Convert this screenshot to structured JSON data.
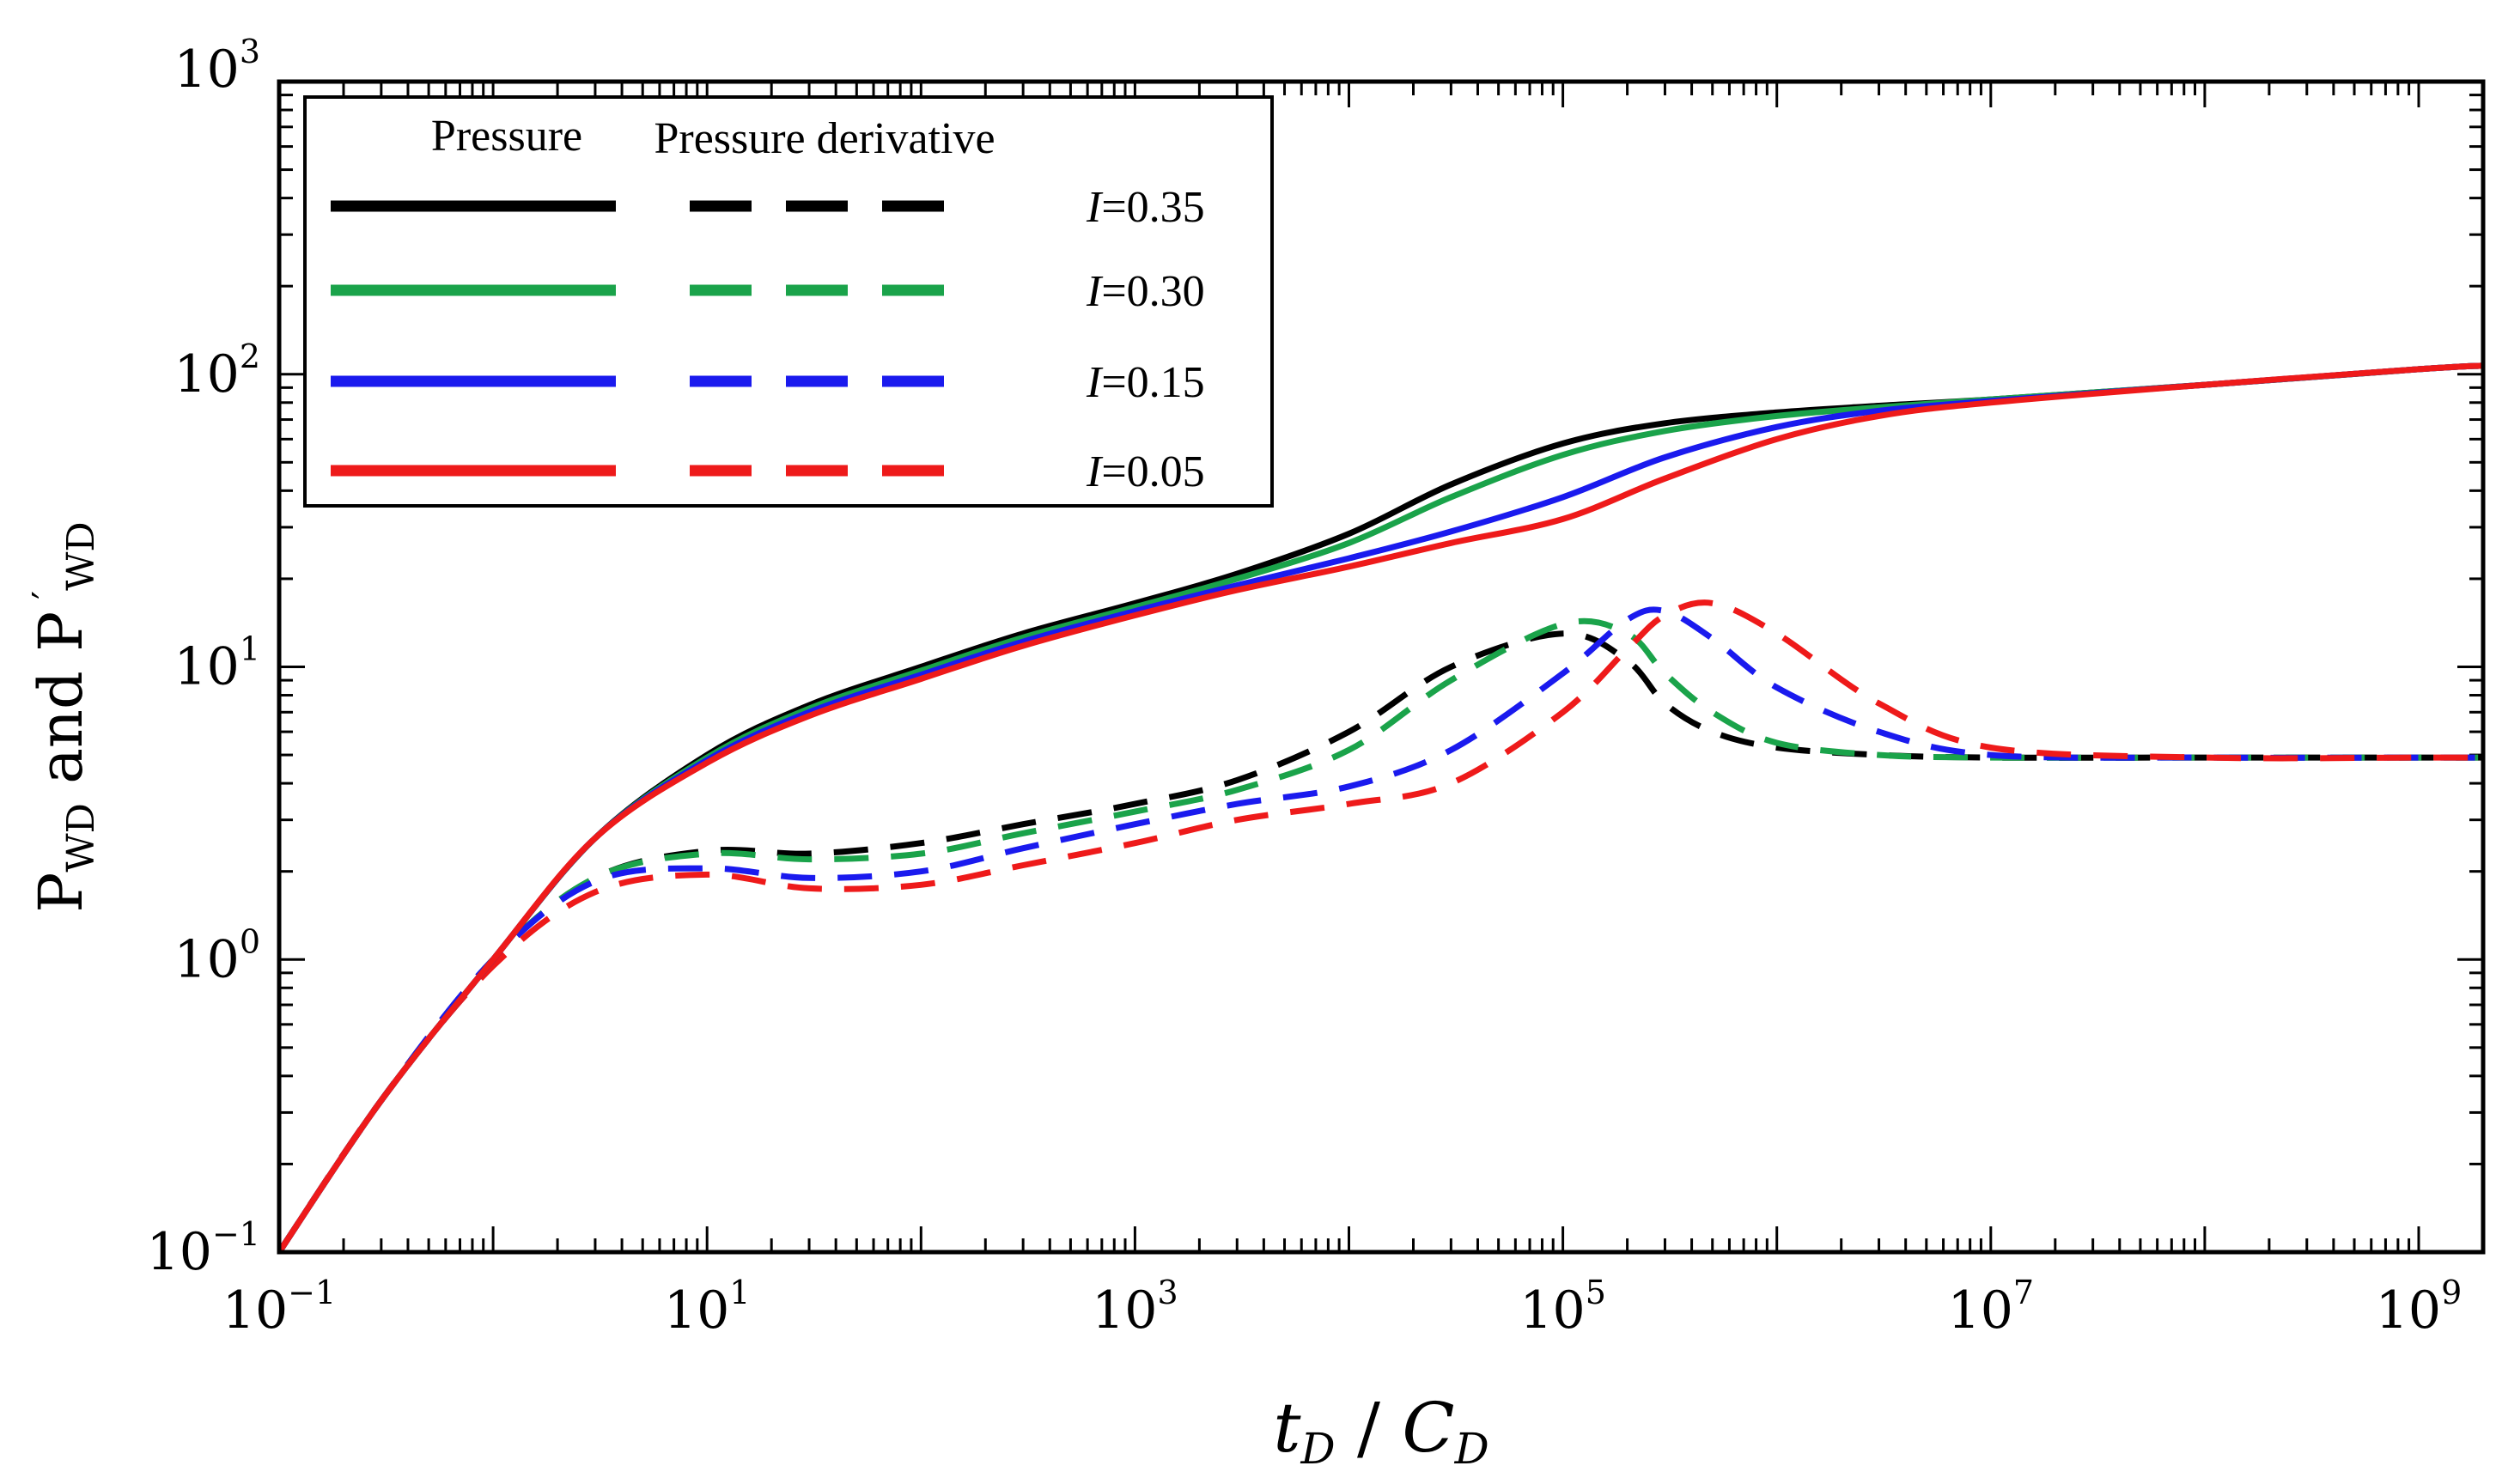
{
  "chart_data": {
    "type": "line",
    "x_scale": "log",
    "y_scale": "log",
    "xlim": [
      0.1,
      2000000000
    ],
    "ylim": [
      0.1,
      1000
    ],
    "x_ticks": [
      {
        "value": 0.1,
        "base": "10",
        "exp": "−1"
      },
      {
        "value": 10,
        "base": "10",
        "exp": "1"
      },
      {
        "value": 1000,
        "base": "10",
        "exp": "3"
      },
      {
        "value": 100000,
        "base": "10",
        "exp": "5"
      },
      {
        "value": 10000000,
        "base": "10",
        "exp": "7"
      },
      {
        "value": 1000000000,
        "base": "10",
        "exp": "9"
      }
    ],
    "y_ticks": [
      {
        "value": 0.1,
        "base": "10",
        "exp": "−1"
      },
      {
        "value": 1,
        "base": "10",
        "exp": "0"
      },
      {
        "value": 10,
        "base": "10",
        "exp": "1"
      },
      {
        "value": 100,
        "base": "10",
        "exp": "2"
      },
      {
        "value": 1000,
        "base": "10",
        "exp": "3"
      }
    ],
    "xlabel": {
      "main": "t",
      "sub1": "D",
      "sep": " / ",
      "main2": "C",
      "sub2": "D"
    },
    "ylabel": {
      "p1": "P",
      "s1": "WD",
      "mid": " and ",
      "p2": "P",
      "prime": " ′",
      "s2": "WD"
    },
    "legend": {
      "header_pressure": "Pressure",
      "header_derivative": "Pressure derivative",
      "var": "I",
      "position": "top-left"
    },
    "series": [
      {
        "name": "I=0.35",
        "label_value": "=0.35",
        "color": "#000000",
        "pressure": {
          "x": [
            0.1,
            0.3,
            1,
            3,
            10,
            30,
            100,
            300,
            1000,
            3000,
            10000,
            30000,
            100000,
            300000,
            1000000,
            3000000,
            10000000,
            100000000,
            1000000000,
            2000000000
          ],
          "y": [
            0.1,
            0.33,
            1.0,
            2.6,
            5.0,
            7.4,
            10.0,
            13.0,
            16.5,
            20.8,
            28.5,
            42.0,
            58.0,
            68.0,
            74.0,
            78.0,
            82.0,
            92.0,
            104.0,
            107.0
          ]
        },
        "derivative": {
          "x": [
            0.1,
            0.3,
            1,
            3,
            10,
            30,
            100,
            300,
            1000,
            3000,
            10000,
            30000,
            100000,
            200000,
            300000,
            500000,
            1000000,
            3000000,
            10000000,
            100000000,
            1000000000,
            2000000000
          ],
          "y": [
            0.1,
            0.33,
            1.0,
            1.9,
            2.35,
            2.3,
            2.5,
            2.9,
            3.4,
            4.1,
            6.0,
            10.0,
            13.0,
            10.5,
            7.5,
            6.0,
            5.3,
            5.0,
            4.9,
            4.9,
            4.9,
            4.9
          ]
        }
      },
      {
        "name": "I=0.30",
        "label_value": "=0.30",
        "color": "#1aa34a",
        "pressure": {
          "x": [
            0.1,
            0.3,
            1,
            3,
            10,
            30,
            100,
            300,
            1000,
            3000,
            10000,
            30000,
            100000,
            300000,
            1000000,
            3000000,
            10000000,
            100000000,
            1000000000,
            2000000000
          ],
          "y": [
            0.1,
            0.33,
            1.0,
            2.6,
            4.9,
            7.2,
            9.7,
            12.6,
            16.0,
            20.0,
            26.5,
            38.0,
            53.0,
            64.0,
            72.0,
            77.0,
            82.0,
            92.0,
            104.0,
            107.0
          ]
        },
        "derivative": {
          "x": [
            0.1,
            0.3,
            1,
            3,
            10,
            30,
            100,
            300,
            1000,
            3000,
            10000,
            30000,
            100000,
            200000,
            300000,
            500000,
            1000000,
            3000000,
            10000000,
            100000000,
            1000000000,
            2000000000
          ],
          "y": [
            0.1,
            0.33,
            1.0,
            1.9,
            2.3,
            2.2,
            2.3,
            2.7,
            3.2,
            3.8,
            5.2,
            9.0,
            14.0,
            13.0,
            9.5,
            7.0,
            5.5,
            5.0,
            4.9,
            4.9,
            4.9,
            4.9
          ]
        }
      },
      {
        "name": "I=0.15",
        "label_value": "=0.15",
        "color": "#1a1aee",
        "pressure": {
          "x": [
            0.1,
            0.3,
            1,
            3,
            10,
            30,
            100,
            300,
            1000,
            3000,
            10000,
            30000,
            100000,
            300000,
            1000000,
            3000000,
            10000000,
            100000000,
            1000000000,
            2000000000
          ],
          "y": [
            0.1,
            0.33,
            1.0,
            2.6,
            4.8,
            7.0,
            9.4,
            12.2,
            15.5,
            19.0,
            23.5,
            29.0,
            38.0,
            52.0,
            66.0,
            75.0,
            81.0,
            92.0,
            104.0,
            107.0
          ]
        },
        "derivative": {
          "x": [
            0.1,
            0.3,
            1,
            3,
            10,
            30,
            100,
            300,
            1000,
            3000,
            10000,
            30000,
            100000,
            200000,
            300000,
            500000,
            1000000,
            3000000,
            10000000,
            100000000,
            1000000000,
            2000000000
          ],
          "y": [
            0.1,
            0.33,
            1.0,
            1.85,
            2.05,
            1.9,
            2.0,
            2.4,
            2.9,
            3.4,
            3.9,
            5.2,
            9.5,
            14.5,
            15.5,
            12.5,
            8.5,
            6.0,
            5.0,
            4.9,
            4.9,
            4.9
          ]
        }
      },
      {
        "name": "I=0.05",
        "label_value": "=0.05",
        "color": "#ee1a1a",
        "pressure": {
          "x": [
            0.1,
            0.3,
            1,
            3,
            10,
            30,
            100,
            300,
            1000,
            3000,
            10000,
            30000,
            100000,
            300000,
            1000000,
            3000000,
            10000000,
            100000000,
            1000000000,
            2000000000
          ],
          "y": [
            0.1,
            0.33,
            1.0,
            2.6,
            4.7,
            6.8,
            9.1,
            11.8,
            15.0,
            18.3,
            22.0,
            26.5,
            32.0,
            44.0,
            60.0,
            72.0,
            80.0,
            92.0,
            104.0,
            107.0
          ]
        },
        "derivative": {
          "x": [
            0.1,
            0.3,
            1,
            3,
            10,
            30,
            100,
            300,
            1000,
            3000,
            10000,
            30000,
            100000,
            200000,
            300000,
            500000,
            1000000,
            3000000,
            10000000,
            100000000,
            1000000000,
            2000000000
          ],
          "y": [
            0.1,
            0.33,
            0.95,
            1.7,
            1.95,
            1.75,
            1.8,
            2.1,
            2.5,
            3.0,
            3.4,
            4.0,
            7.0,
            11.5,
            15.0,
            16.5,
            13.0,
            7.5,
            5.3,
            4.9,
            4.9,
            4.9
          ]
        }
      }
    ]
  }
}
